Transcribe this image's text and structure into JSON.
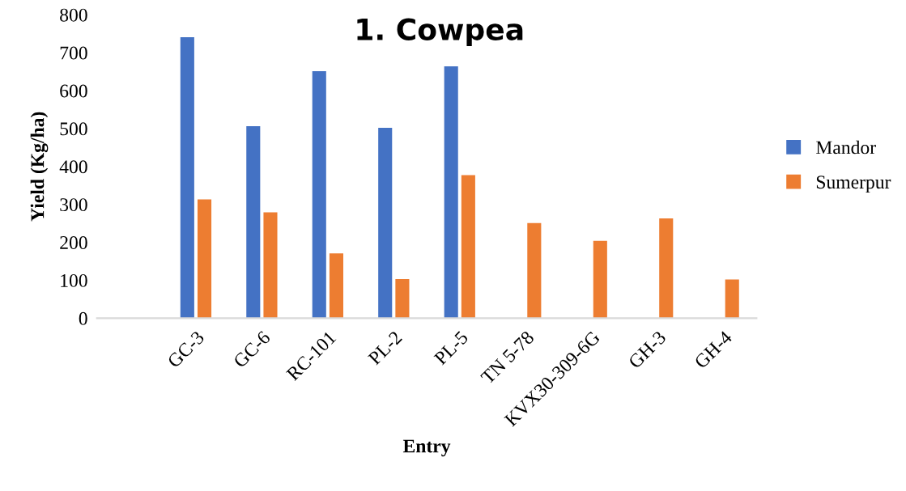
{
  "chart_data": {
    "type": "bar",
    "title": "1. Cowpea",
    "xlabel": "Entry",
    "ylabel": "Yield (Kg/ha)",
    "categories": [
      null,
      "GC-3",
      "GC-6",
      "RC-101",
      "PL-2",
      "PL-5",
      "TN 5-78",
      "KVX30-309-6G",
      "GH-3",
      "GH-4"
    ],
    "series": [
      {
        "name": "Mandor",
        "color": "#4472c4",
        "values": [
          null,
          741,
          506,
          651,
          502,
          664,
          null,
          null,
          null,
          null
        ]
      },
      {
        "name": "Sumerpur",
        "color": "#ed7d31",
        "values": [
          null,
          313,
          279,
          171,
          103,
          377,
          251,
          204,
          263,
          102
        ]
      }
    ],
    "ylim": [
      0,
      800
    ],
    "yticks": [
      0,
      100,
      200,
      300,
      400,
      500,
      600,
      700,
      800
    ],
    "grid": false,
    "legend": "right"
  }
}
